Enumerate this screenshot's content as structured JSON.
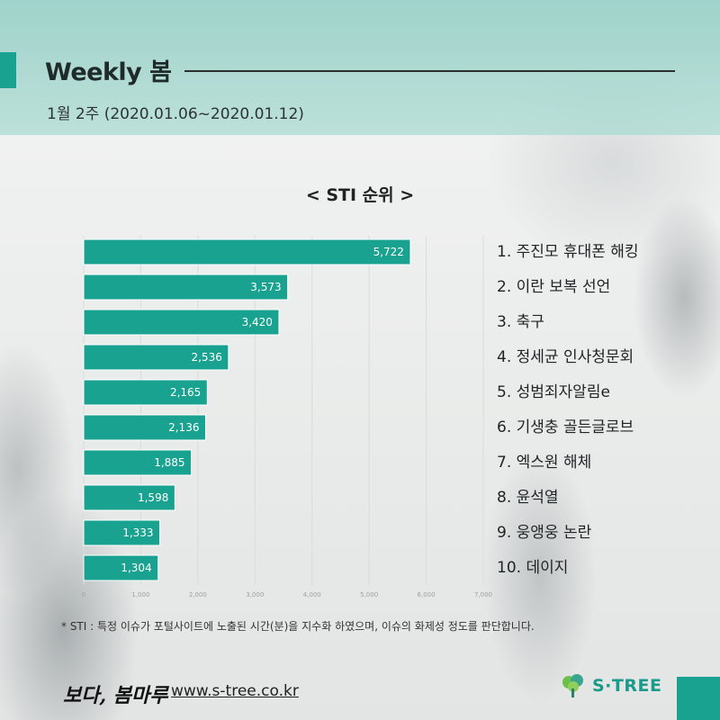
{
  "header": {
    "title": "Weekly 봄",
    "subtitle": "1월 2주 (2020.01.06~2020.01.12)"
  },
  "chart_data": {
    "type": "bar",
    "orientation": "horizontal",
    "title": "< STI 순위 >",
    "categories": [
      "1. 주진모 휴대폰 해킹",
      "2. 이란 보복 선언",
      "3. 축구",
      "4. 정세균 인사청문회",
      "5. 성범죄자알림e",
      "6. 기생충 골든글로브",
      "7. 엑스원 해체",
      "8. 윤석열",
      "9. 웅앵웅 논란",
      "10. 데이지"
    ],
    "values": [
      5722,
      3573,
      3420,
      2536,
      2165,
      2136,
      1885,
      1598,
      1333,
      1304
    ],
    "value_labels": [
      "5,722",
      "3,573",
      "3,420",
      "2,536",
      "2,165",
      "2,136",
      "1,885",
      "1,598",
      "1,333",
      "1,304"
    ],
    "xlim": [
      0,
      7000
    ],
    "x_ticks": [
      0,
      1000,
      2000,
      3000,
      4000,
      5000,
      6000,
      7000
    ],
    "x_tick_labels": [
      "0",
      "1,000",
      "2,000",
      "3,000",
      "4,000",
      "5,000",
      "6,000",
      "7,000"
    ],
    "grid": true,
    "bar_color": "#1aa291"
  },
  "footnote": "* STI : 특정 이슈가 포털사이트에 노출된 시간(분)을 지수화 하였으며, 이슈의 화제성 정도를 판단합니다.",
  "footer": {
    "brand": "보다, 봄마루",
    "url": "www.s-tree.co.kr",
    "logo_text": "S·TREE"
  },
  "colors": {
    "accent": "#1aa291",
    "header_bg": "#a3d5cc"
  }
}
